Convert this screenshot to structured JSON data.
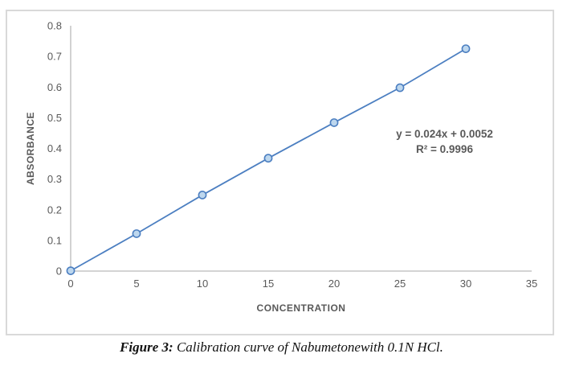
{
  "chart_data": {
    "type": "scatter",
    "title": "",
    "xlabel": "CONCENTRATION",
    "ylabel": "ABSORBANCE",
    "x": [
      0,
      5,
      10,
      15,
      20,
      25,
      30
    ],
    "y": [
      0.001,
      0.122,
      0.248,
      0.368,
      0.484,
      0.598,
      0.725
    ],
    "xlim": [
      0,
      35
    ],
    "ylim": [
      0,
      0.8
    ],
    "x_ticks": [
      0,
      5,
      10,
      15,
      20,
      25,
      30,
      35
    ],
    "y_ticks": [
      0,
      0.1,
      0.2,
      0.3,
      0.4,
      0.5,
      0.6,
      0.7,
      0.8
    ],
    "grid": false,
    "legend_position": "none",
    "marker_style": "circle",
    "line_through_points": true,
    "colors": {
      "line": "#4C7FC1",
      "marker_fill": "#BDD7EE",
      "marker_stroke": "#4C7FC1",
      "axis_line": "#C6C6C6",
      "text": "#595959",
      "chart_border": "#D9D9D9"
    }
  },
  "annotation": {
    "equation": "y = 0.024x + 0.0052",
    "r_squared": "R² = 0.9996"
  },
  "caption": {
    "label": "Figure 3:",
    "text": " Calibration curve of Nabumetonewith 0.1N HCl."
  }
}
